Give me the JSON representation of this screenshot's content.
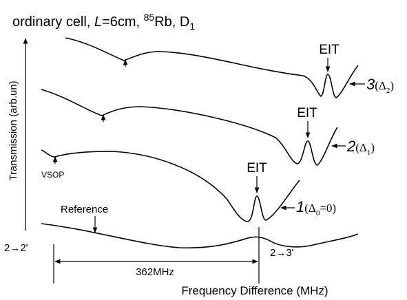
{
  "chart_data": {
    "type": "line",
    "title": [
      "ordinary cell, ",
      "L",
      "=6cm, ",
      "85",
      "Rb, D",
      "1"
    ],
    "ylabel": "Transmission (arb.un)",
    "xlabel": "Frequency Difference (MHz)",
    "annotations": {
      "eit": [
        "EIT",
        "EIT",
        "EIT"
      ],
      "trace3": [
        "3",
        "(Δ",
        "2",
        ")"
      ],
      "trace2": [
        "2",
        "(Δ",
        "1",
        ")"
      ],
      "trace1": [
        "1",
        "(Δ",
        "0",
        "=0)"
      ],
      "vsop": "VSOP",
      "reference": "Reference",
      "transition22": "2→2'",
      "transition23": "2→3'",
      "spacing": "362MHz"
    }
  }
}
